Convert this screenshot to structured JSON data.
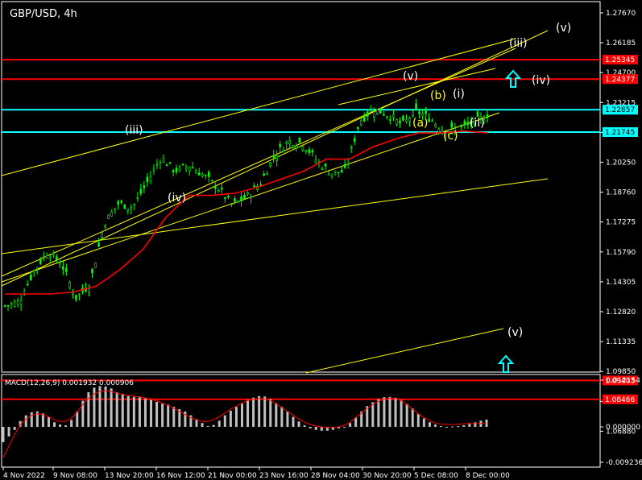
{
  "chart_data": [
    {
      "type": "candlestick",
      "title": "GBP/USD, 4h",
      "ylim": [
        1.07,
        1.29
      ],
      "y_ticks": [
        "1.27670",
        "1.26185",
        "1.24700",
        "1.23215",
        "1.21730",
        "1.20250",
        "1.18760",
        "1.17275",
        "1.15790",
        "1.14305",
        "1.12820",
        "1.11335",
        "1.09850",
        "1.08365",
        "1.06880"
      ],
      "x_ticks": [
        "4 Nov 2022",
        "9 Nov 08:00",
        "13 Nov 20:00",
        "16 Nov 12:00",
        "21 Nov 00:00",
        "23 Nov 16:00",
        "28 Nov 04:00",
        "30 Nov 20:00",
        "5 Dec 08:00",
        "8 Dec 00:00"
      ],
      "close_path": [
        1.131,
        1.133,
        1.148,
        1.158,
        1.152,
        1.135,
        1.142,
        1.172,
        1.182,
        1.18,
        1.192,
        1.205,
        1.198,
        1.201,
        1.196,
        1.19,
        1.181,
        1.185,
        1.192,
        1.206,
        1.213,
        1.212,
        1.203,
        1.197,
        1.198,
        1.223,
        1.229,
        1.226,
        1.221,
        1.228,
        1.224,
        1.218,
        1.219,
        1.222,
        1.226
      ],
      "ma_path": [
        1.137,
        1.137,
        1.137,
        1.138,
        1.141,
        1.149,
        1.159,
        1.175,
        1.186,
        1.186,
        1.187,
        1.19,
        1.194,
        1.198,
        1.204,
        1.204,
        1.21,
        1.214,
        1.217,
        1.217,
        1.218,
        1.217
      ],
      "horizontal_levels": [
        {
          "value": 1.25345,
          "label": "1.25345",
          "color": "#ff0000",
          "tag_bg": "#ff0000",
          "tag_fg": "#ffffff"
        },
        {
          "value": 1.24377,
          "label": "1.24377",
          "color": "#ff0000",
          "tag_bg": "#ff0000",
          "tag_fg": "#ffffff"
        },
        {
          "value": 1.22857,
          "label": "1.22857",
          "color": "#00ffff",
          "tag_bg": "#00ffff",
          "tag_fg": "#000000"
        },
        {
          "value": 1.21745,
          "label": "1.21745",
          "color": "#00ffff",
          "tag_bg": "#00ffff",
          "tag_fg": "#000000"
        },
        {
          "value": 1.09403,
          "label": "1.09403",
          "color": "#ff0000",
          "tag_bg": "#ff0000",
          "tag_fg": "#ffffff"
        },
        {
          "value": 1.08466,
          "label": "1.08466",
          "color": "#ff0000",
          "tag_bg": "#ff0000",
          "tag_fg": "#ffffff"
        }
      ],
      "wave_labels": [
        {
          "text": "(iii)",
          "color": "#ffffff"
        },
        {
          "text": "(iv)",
          "color": "#ffffff"
        },
        {
          "text": "(v)",
          "color": "#ffffff"
        },
        {
          "text": "(b)",
          "color": "#ffff00"
        },
        {
          "text": "(i)",
          "color": "#ffffff"
        },
        {
          "text": "(a)",
          "color": "#ffff00"
        },
        {
          "text": "(c)",
          "color": "#ffff00"
        },
        {
          "text": "(ii)",
          "color": "#ffffff"
        },
        {
          "text": "(v)",
          "color": "#ffffff"
        },
        {
          "text": "(iii)",
          "color": "#ffffff"
        },
        {
          "text": "(iv)",
          "color": "#ffffff"
        },
        {
          "text": "(v)",
          "color": "#ffffff"
        }
      ],
      "colors": {
        "bull": "#00ff00",
        "ma": "#ff0000",
        "trendline": "#ffff00",
        "arrow": "#00ffff"
      }
    },
    {
      "type": "bar",
      "title": "MACD(12,26,9) 0.001932 0.000906",
      "ylim": [
        -0.009236,
        0.012154
      ],
      "y_ticks": [
        "0.012154",
        "0.000000",
        "-0.009236"
      ],
      "histogram": [
        -0.004,
        -0.0025,
        -0.0008,
        0.0015,
        0.003,
        0.0038,
        0.004,
        0.0035,
        0.0025,
        0.0012,
        0.0006,
        0.0004,
        0.0018,
        0.004,
        0.0068,
        0.009,
        0.0102,
        0.0106,
        0.0105,
        0.01,
        0.009,
        0.0086,
        0.008,
        0.0078,
        0.0078,
        0.0074,
        0.007,
        0.0065,
        0.006,
        0.0058,
        0.0052,
        0.0046,
        0.004,
        0.003,
        0.002,
        0.001,
        0.0002,
        0.0005,
        0.0016,
        0.003,
        0.0042,
        0.0052,
        0.006,
        0.007,
        0.0076,
        0.008,
        0.0079,
        0.0072,
        0.0062,
        0.0052,
        0.004,
        0.0026,
        0.0014,
        0.0004,
        -0.0004,
        -0.0008,
        -0.001,
        -0.001,
        -0.0008,
        -0.0004,
        0.0,
        0.001,
        0.0024,
        0.004,
        0.0054,
        0.0064,
        0.0072,
        0.0077,
        0.0078,
        0.0076,
        0.007,
        0.006,
        0.0048,
        0.0034,
        0.0022,
        0.0012,
        0.0006,
        0.0002,
        0.0,
        0.0001,
        0.0002,
        0.0004,
        0.0008,
        0.0012,
        0.0016,
        0.0019
      ],
      "signal": [
        -0.008,
        -0.005,
        -0.002,
        0.0005,
        0.002,
        0.003,
        0.0034,
        0.0032,
        0.0026,
        0.0018,
        0.0014,
        0.0014,
        0.0022,
        0.0038,
        0.0058,
        0.0074,
        0.0086,
        0.0092,
        0.0094,
        0.0092,
        0.0088,
        0.0084,
        0.0082,
        0.008,
        0.0078,
        0.0075,
        0.0072,
        0.0067,
        0.0062,
        0.0056,
        0.0048,
        0.004,
        0.0032,
        0.0024,
        0.0018,
        0.0014,
        0.0014,
        0.0018,
        0.0026,
        0.0036,
        0.0046,
        0.0054,
        0.0062,
        0.0068,
        0.0072,
        0.0074,
        0.0073,
        0.0068,
        0.006,
        0.005,
        0.004,
        0.003,
        0.002,
        0.0012,
        0.0006,
        0.0002,
        0.0,
        -0.0002,
        -0.0002,
        0.0,
        0.0004,
        0.0012,
        0.0024,
        0.0036,
        0.0048,
        0.0058,
        0.0066,
        0.0072,
        0.0075,
        0.0074,
        0.0068,
        0.0058,
        0.0046,
        0.0034,
        0.0024,
        0.0016,
        0.001,
        0.0007,
        0.0006,
        0.0006,
        0.0007,
        0.0008,
        0.0009,
        0.0009,
        0.0009,
        0.0009
      ]
    }
  ]
}
